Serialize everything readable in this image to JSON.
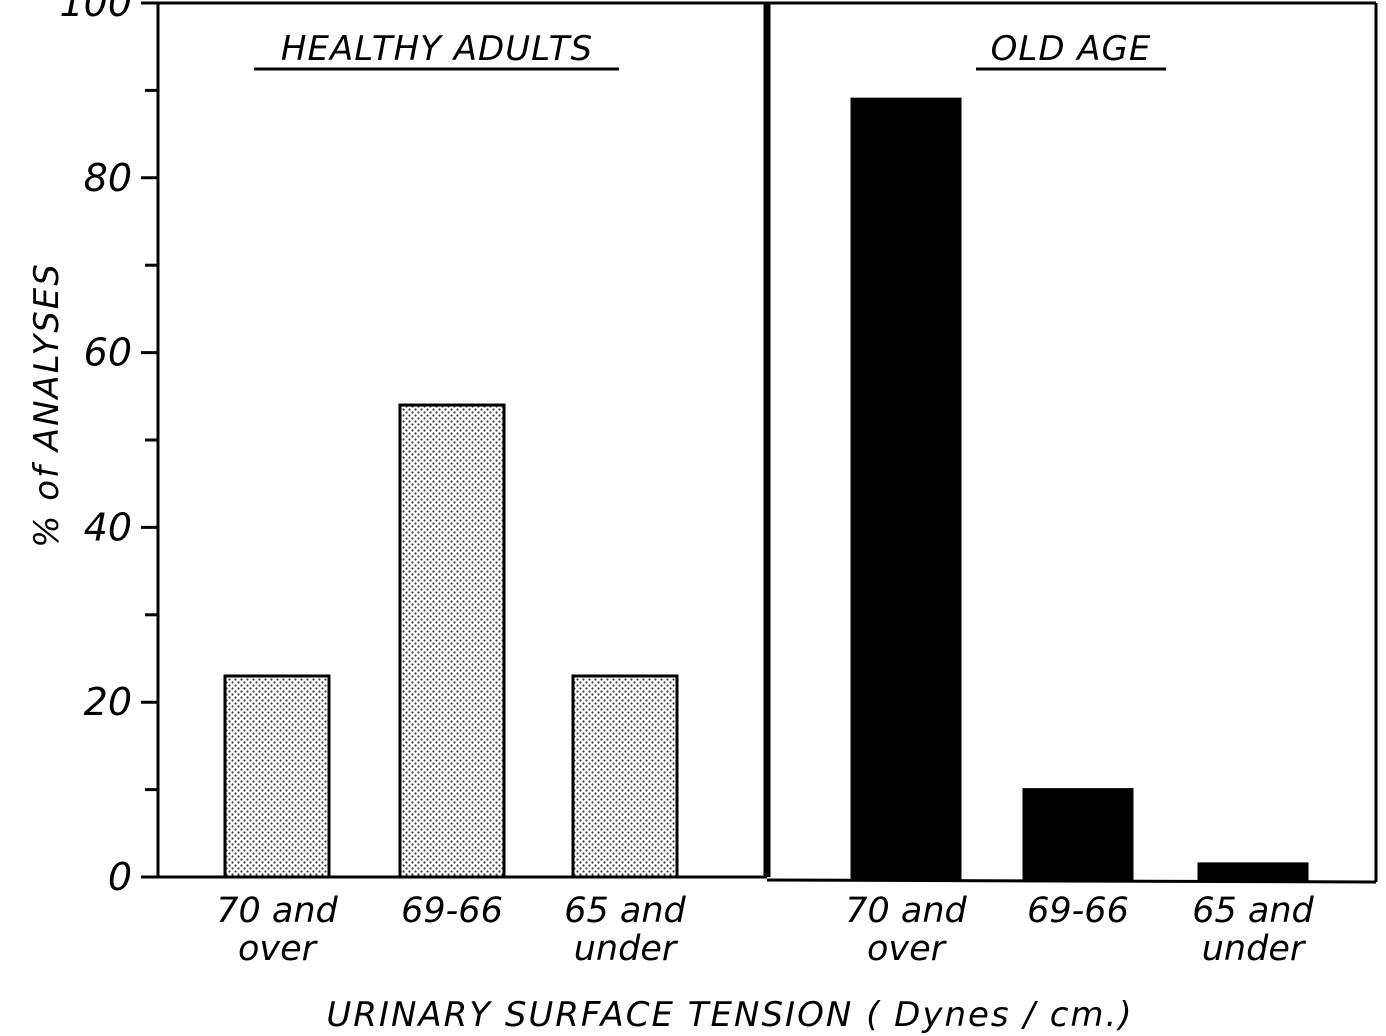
{
  "chart_data": {
    "type": "bar",
    "ylabel": "% of ANALYSES",
    "xlabel": "URINARY SURFACE TENSION ( Dynes / cm.)",
    "ylim": [
      0,
      100
    ],
    "yticks": [
      0,
      20,
      40,
      60,
      80,
      100
    ],
    "yticks_minor": [
      10,
      30,
      50,
      70,
      90
    ],
    "grid": false,
    "panels": [
      {
        "title": "HEALTHY ADULTS",
        "fill": "dotted",
        "color": "#c8c8c8",
        "categories": [
          {
            "line1": "70 and",
            "line2": "over"
          },
          {
            "line1": "69-66",
            "line2": ""
          },
          {
            "line1": "65 and",
            "line2": "under"
          }
        ],
        "values": [
          23,
          54,
          23
        ]
      },
      {
        "title": "OLD AGE",
        "fill": "solid",
        "color": "#000000",
        "categories": [
          {
            "line1": "70 and",
            "line2": "over"
          },
          {
            "line1": "69-66",
            "line2": ""
          },
          {
            "line1": "65 and",
            "line2": "under"
          }
        ],
        "values": [
          89,
          10,
          1.5
        ]
      }
    ]
  }
}
